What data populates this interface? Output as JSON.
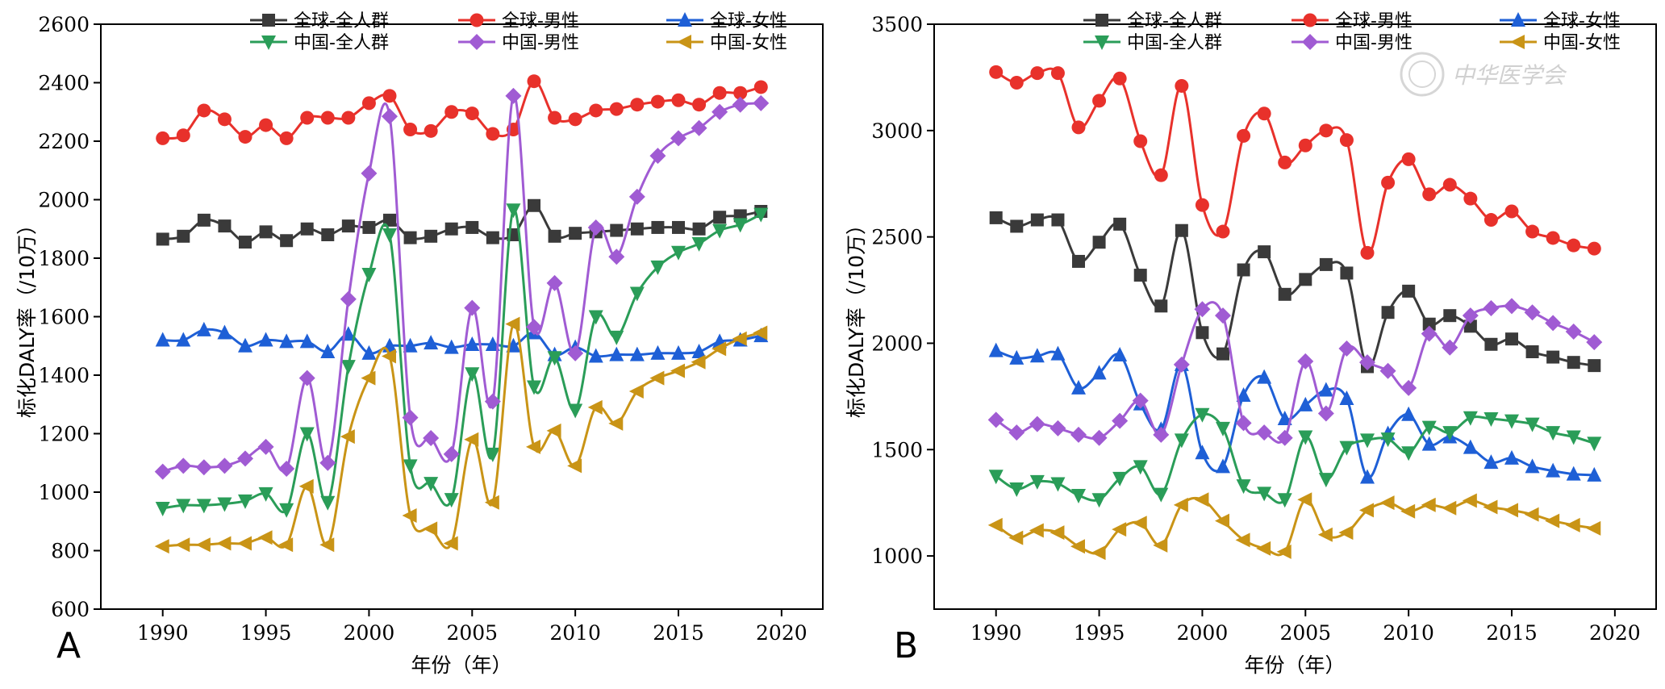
{
  "chart_data": [
    {
      "type": "line",
      "panel": "A",
      "xlabel": "年份（年）",
      "ylabel": "标化DALY率（/10万）",
      "xlim": [
        1987,
        2022
      ],
      "ylim": [
        600,
        2600
      ],
      "xticks": [
        1990,
        1995,
        2000,
        2005,
        2010,
        2015,
        2020
      ],
      "yticks": [
        600,
        800,
        1000,
        1200,
        1400,
        1600,
        1800,
        2000,
        2200,
        2400,
        2600
      ],
      "legend_placement": "top",
      "x": [
        1990,
        1991,
        1992,
        1993,
        1994,
        1995,
        1996,
        1997,
        1998,
        1999,
        2000,
        2001,
        2002,
        2003,
        2004,
        2005,
        2006,
        2007,
        2008,
        2009,
        2010,
        2011,
        2012,
        2013,
        2014,
        2015,
        2016,
        2017,
        2018,
        2019
      ],
      "series": [
        {
          "name": "全球-全人群",
          "color": "#3a3a3a",
          "marker": "square",
          "values": [
            1865,
            1875,
            1930,
            1910,
            1855,
            1890,
            1860,
            1900,
            1880,
            1910,
            1905,
            1930,
            1870,
            1875,
            1900,
            1905,
            1870,
            1880,
            1980,
            1875,
            1885,
            1890,
            1895,
            1900,
            1905,
            1905,
            1900,
            1940,
            1945,
            1960
          ]
        },
        {
          "name": "全球-男性",
          "color": "#e8312b",
          "marker": "circle",
          "values": [
            2210,
            2220,
            2305,
            2275,
            2215,
            2255,
            2210,
            2280,
            2280,
            2280,
            2330,
            2355,
            2240,
            2235,
            2300,
            2295,
            2225,
            2240,
            2405,
            2280,
            2275,
            2305,
            2310,
            2325,
            2335,
            2340,
            2325,
            2365,
            2365,
            2385
          ]
        },
        {
          "name": "全球-女性",
          "color": "#1e5fd6",
          "marker": "triangle-up",
          "values": [
            1520,
            1520,
            1555,
            1545,
            1500,
            1520,
            1515,
            1515,
            1480,
            1540,
            1475,
            1500,
            1500,
            1510,
            1495,
            1505,
            1505,
            1500,
            1545,
            1470,
            1495,
            1465,
            1470,
            1470,
            1475,
            1475,
            1480,
            1515,
            1520,
            1535
          ]
        },
        {
          "name": "中国-全人群",
          "color": "#2a9d58",
          "marker": "triangle-down",
          "values": [
            945,
            955,
            955,
            960,
            970,
            995,
            940,
            1200,
            965,
            1430,
            1745,
            1880,
            1090,
            1030,
            975,
            1405,
            1130,
            1965,
            1360,
            1460,
            1280,
            1600,
            1530,
            1680,
            1770,
            1820,
            1850,
            1895,
            1915,
            1950
          ]
        },
        {
          "name": "中国-男性",
          "color": "#a05bd3",
          "marker": "diamond",
          "values": [
            1070,
            1090,
            1085,
            1090,
            1115,
            1155,
            1080,
            1390,
            1100,
            1660,
            2090,
            2285,
            1255,
            1185,
            1130,
            1630,
            1310,
            2355,
            1565,
            1715,
            1475,
            1905,
            1805,
            2010,
            2150,
            2210,
            2245,
            2300,
            2325,
            2330
          ]
        },
        {
          "name": "中国-女性",
          "color": "#c99416",
          "marker": "triangle-left",
          "values": [
            815,
            820,
            820,
            825,
            825,
            845,
            820,
            1020,
            820,
            1190,
            1390,
            1465,
            920,
            875,
            825,
            1180,
            965,
            1575,
            1155,
            1210,
            1090,
            1290,
            1235,
            1345,
            1390,
            1415,
            1445,
            1490,
            1525,
            1545
          ]
        }
      ]
    },
    {
      "type": "line",
      "panel": "B",
      "xlabel": "年份（年）",
      "ylabel": "标化DALY率（/10万）",
      "xlim": [
        1987,
        2022
      ],
      "ylim": [
        750,
        3500
      ],
      "xticks": [
        1990,
        1995,
        2000,
        2005,
        2010,
        2015,
        2020
      ],
      "yticks": [
        1000,
        1500,
        2000,
        2500,
        3000,
        3500
      ],
      "legend_placement": "top",
      "x": [
        1990,
        1991,
        1992,
        1993,
        1994,
        1995,
        1996,
        1997,
        1998,
        1999,
        2000,
        2001,
        2002,
        2003,
        2004,
        2005,
        2006,
        2007,
        2008,
        2009,
        2010,
        2011,
        2012,
        2013,
        2014,
        2015,
        2016,
        2017,
        2018,
        2019
      ],
      "series": [
        {
          "name": "全球-全人群",
          "color": "#3a3a3a",
          "marker": "square",
          "values": [
            2590,
            2550,
            2580,
            2580,
            2385,
            2475,
            2560,
            2320,
            2175,
            2530,
            2050,
            1950,
            2345,
            2430,
            2230,
            2300,
            2370,
            2330,
            1890,
            2145,
            2245,
            2090,
            2130,
            2080,
            1995,
            2020,
            1960,
            1935,
            1910,
            1895
          ]
        },
        {
          "name": "全球-男性",
          "color": "#e8312b",
          "marker": "circle",
          "values": [
            3275,
            3225,
            3270,
            3270,
            3015,
            3140,
            3245,
            2950,
            2790,
            3210,
            2650,
            2525,
            2975,
            3080,
            2850,
            2930,
            3000,
            2955,
            2425,
            2755,
            2865,
            2700,
            2745,
            2680,
            2580,
            2620,
            2525,
            2495,
            2460,
            2445
          ]
        },
        {
          "name": "全球-女性",
          "color": "#1e5fd6",
          "marker": "triangle-up",
          "values": [
            1965,
            1930,
            1940,
            1950,
            1790,
            1860,
            1945,
            1715,
            1595,
            1900,
            1485,
            1420,
            1755,
            1840,
            1645,
            1710,
            1780,
            1740,
            1370,
            1575,
            1665,
            1525,
            1560,
            1510,
            1440,
            1460,
            1420,
            1400,
            1385,
            1380
          ]
        },
        {
          "name": "中国-全人群",
          "color": "#2a9d58",
          "marker": "triangle-down",
          "values": [
            1375,
            1315,
            1350,
            1340,
            1285,
            1265,
            1365,
            1420,
            1290,
            1545,
            1665,
            1600,
            1330,
            1295,
            1265,
            1560,
            1360,
            1510,
            1545,
            1550,
            1485,
            1605,
            1580,
            1650,
            1645,
            1635,
            1620,
            1580,
            1560,
            1530
          ]
        },
        {
          "name": "中国-男性",
          "color": "#a05bd3",
          "marker": "diamond",
          "values": [
            1640,
            1580,
            1620,
            1600,
            1570,
            1555,
            1635,
            1730,
            1570,
            1900,
            2160,
            2130,
            1625,
            1580,
            1555,
            1915,
            1670,
            1975,
            1910,
            1870,
            1790,
            2045,
            1980,
            2130,
            2165,
            2175,
            2145,
            2095,
            2055,
            2005
          ]
        },
        {
          "name": "中国-女性",
          "color": "#c99416",
          "marker": "triangle-left",
          "values": [
            1145,
            1085,
            1120,
            1110,
            1045,
            1015,
            1125,
            1155,
            1050,
            1240,
            1265,
            1165,
            1075,
            1035,
            1020,
            1265,
            1100,
            1110,
            1215,
            1250,
            1210,
            1240,
            1225,
            1260,
            1230,
            1215,
            1195,
            1165,
            1145,
            1130
          ]
        }
      ]
    }
  ],
  "panel_labels": [
    "A",
    "B"
  ],
  "watermark": "中华医学会"
}
